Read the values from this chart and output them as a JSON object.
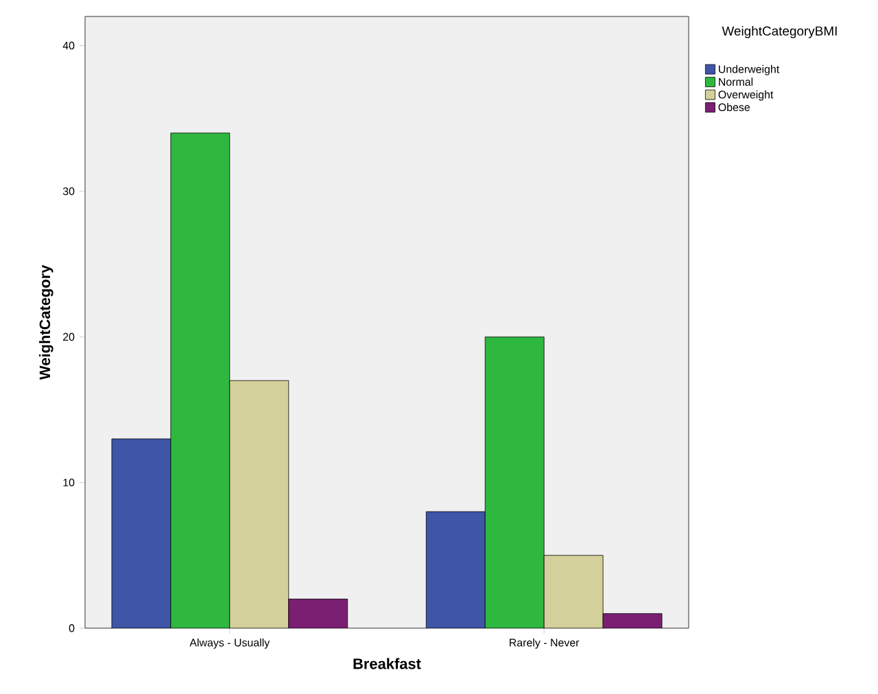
{
  "chart_data": {
    "type": "bar",
    "xlabel": "Breakfast",
    "ylabel": "WeightCategory",
    "legend_title": "WeightCategoryBMI",
    "categories": [
      "Always - Usually",
      "Rarely - Never"
    ],
    "series": [
      {
        "name": "Underweight",
        "color": "#3f55a8",
        "values": [
          13,
          8
        ]
      },
      {
        "name": "Normal",
        "color": "#2eb83f",
        "values": [
          34,
          20
        ]
      },
      {
        "name": "Overweight",
        "color": "#d4d09b",
        "values": [
          17,
          5
        ]
      },
      {
        "name": "Obese",
        "color": "#7b1f73",
        "values": [
          2,
          1
        ]
      }
    ],
    "ylim": [
      0,
      42
    ],
    "yticks": [
      0,
      10,
      20,
      30,
      40
    ],
    "grid": false,
    "legend": "top right"
  }
}
